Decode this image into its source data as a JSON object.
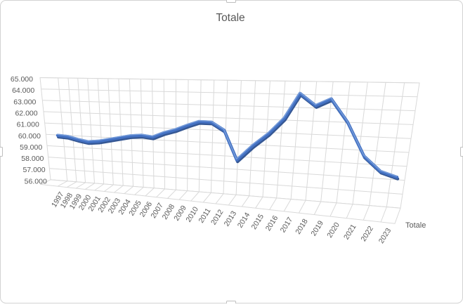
{
  "chart_data": {
    "type": "line",
    "projection": "3d",
    "title": "Totale",
    "categories": [
      "1997",
      "1998",
      "1999",
      "2000",
      "2001",
      "2002",
      "2003",
      "2004",
      "2005",
      "2006",
      "2007",
      "2008",
      "2009",
      "2010",
      "2011",
      "2012",
      "2013",
      "2014",
      "2015",
      "2016",
      "2017",
      "2018",
      "2019",
      "2020",
      "2021",
      "2022",
      "2023"
    ],
    "series": [
      {
        "name": "Totale",
        "values": [
          60150,
          60100,
          59900,
          59750,
          59850,
          60050,
          60250,
          60450,
          60550,
          60450,
          60850,
          61150,
          61550,
          61900,
          61900,
          61300,
          59000,
          60200,
          61200,
          62450,
          64400,
          63500,
          64050,
          62350,
          59900,
          58850,
          58500
        ]
      }
    ],
    "ylim": [
      56000,
      65000
    ],
    "ytick_step": 1000,
    "ytick_labels": [
      "65.000",
      "64.000",
      "63.000",
      "62.000",
      "61.000",
      "60.000",
      "59.000",
      "58.000",
      "57.000",
      "56.000"
    ],
    "xlabel": "",
    "ylabel": "",
    "grid": true,
    "legend_position": "depth-axis-right"
  },
  "colors": {
    "series_line": "#4472C4",
    "series_line_dark": "#2B4F8E",
    "series_line_light": "#7CA1DC",
    "gridline": "#D9D9D9",
    "axis_text": "#595959",
    "title_text": "#575757",
    "frame_border": "#D2D2D2",
    "handle_border": "#BFBFBF",
    "background": "#FFFFFF"
  }
}
